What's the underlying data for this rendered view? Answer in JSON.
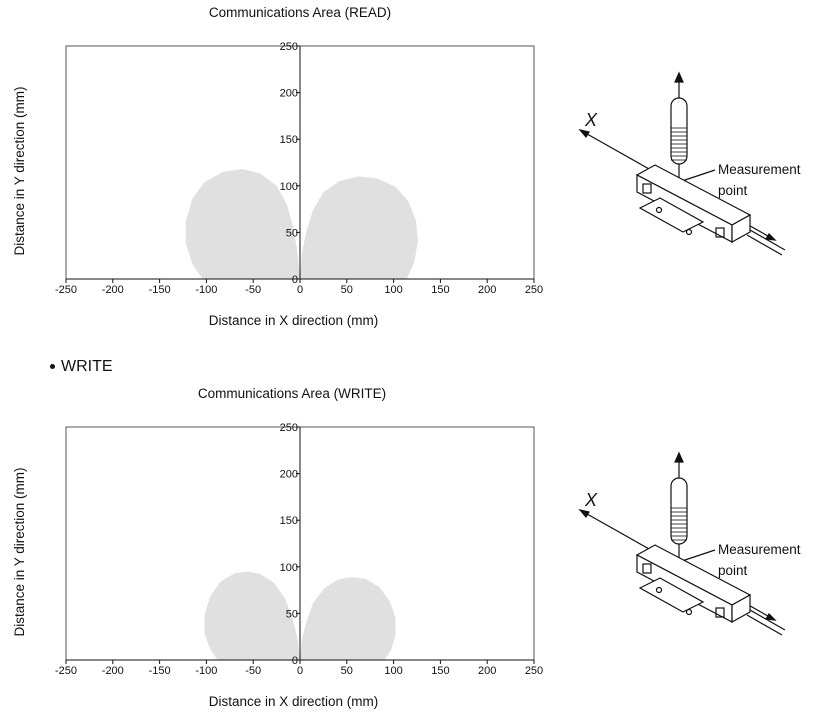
{
  "section_heading": "WRITE",
  "charts": [
    {
      "id": "read",
      "title": "Communications Area (READ)",
      "xlabel": "Distance in X direction (mm)",
      "ylabel": "Distance in Y direction (mm)",
      "callout_line1": "Measurement",
      "callout_line2": "point"
    },
    {
      "id": "write",
      "title": "Communications Area (WRITE)",
      "xlabel": "Distance in X direction (mm)",
      "ylabel": "Distance in Y direction (mm)",
      "callout_line1": "Measurement",
      "callout_line2": "point"
    }
  ],
  "chart_data": [
    {
      "type": "area",
      "title": "Communications Area (READ)",
      "xlabel": "Distance in X direction (mm)",
      "ylabel": "Distance in Y direction (mm)",
      "xlim": [
        -250,
        250
      ],
      "ylim": [
        0,
        250
      ],
      "xticks": [
        -250,
        -200,
        -150,
        -100,
        -50,
        0,
        50,
        100,
        150,
        200,
        250
      ],
      "yticks": [
        0,
        50,
        100,
        150,
        200,
        250
      ],
      "grid": false,
      "fill_color": "#e0e0e0",
      "series": [
        {
          "points": [
            [
              0,
              0
            ],
            [
              -3,
              30
            ],
            [
              -7,
              55
            ],
            [
              -14,
              80
            ],
            [
              -25,
              100
            ],
            [
              -42,
              113
            ],
            [
              -62,
              118
            ],
            [
              -82,
              115
            ],
            [
              -102,
              104
            ],
            [
              -115,
              86
            ],
            [
              -122,
              62
            ],
            [
              -122,
              38
            ],
            [
              -115,
              16
            ],
            [
              -104,
              0
            ]
          ]
        },
        {
          "points": [
            [
              0,
              0
            ],
            [
              2,
              28
            ],
            [
              7,
              52
            ],
            [
              14,
              74
            ],
            [
              25,
              93
            ],
            [
              42,
              105
            ],
            [
              62,
              110
            ],
            [
              82,
              108
            ],
            [
              102,
              99
            ],
            [
              116,
              83
            ],
            [
              124,
              62
            ],
            [
              126,
              40
            ],
            [
              122,
              18
            ],
            [
              114,
              0
            ]
          ]
        }
      ]
    },
    {
      "type": "area",
      "title": "Communications Area (WRITE)",
      "xlabel": "Distance in X direction (mm)",
      "ylabel": "Distance in Y direction (mm)",
      "xlim": [
        -250,
        250
      ],
      "ylim": [
        0,
        250
      ],
      "xticks": [
        -250,
        -200,
        -150,
        -100,
        -50,
        0,
        50,
        100,
        150,
        200,
        250
      ],
      "yticks": [
        0,
        50,
        100,
        150,
        200,
        250
      ],
      "grid": false,
      "fill_color": "#e0e0e0",
      "series": [
        {
          "points": [
            [
              0,
              0
            ],
            [
              -3,
              24
            ],
            [
              -8,
              45
            ],
            [
              -16,
              66
            ],
            [
              -28,
              83
            ],
            [
              -42,
              92
            ],
            [
              -55,
              95
            ],
            [
              -70,
              93
            ],
            [
              -85,
              84
            ],
            [
              -96,
              68
            ],
            [
              -102,
              48
            ],
            [
              -102,
              28
            ],
            [
              -96,
              12
            ],
            [
              -88,
              0
            ]
          ]
        },
        {
          "points": [
            [
              0,
              0
            ],
            [
              2,
              22
            ],
            [
              7,
              42
            ],
            [
              14,
              61
            ],
            [
              26,
              77
            ],
            [
              40,
              86
            ],
            [
              54,
              89
            ],
            [
              70,
              87
            ],
            [
              85,
              78
            ],
            [
              96,
              63
            ],
            [
              102,
              45
            ],
            [
              102,
              26
            ],
            [
              97,
              10
            ],
            [
              90,
              0
            ]
          ]
        }
      ]
    }
  ]
}
